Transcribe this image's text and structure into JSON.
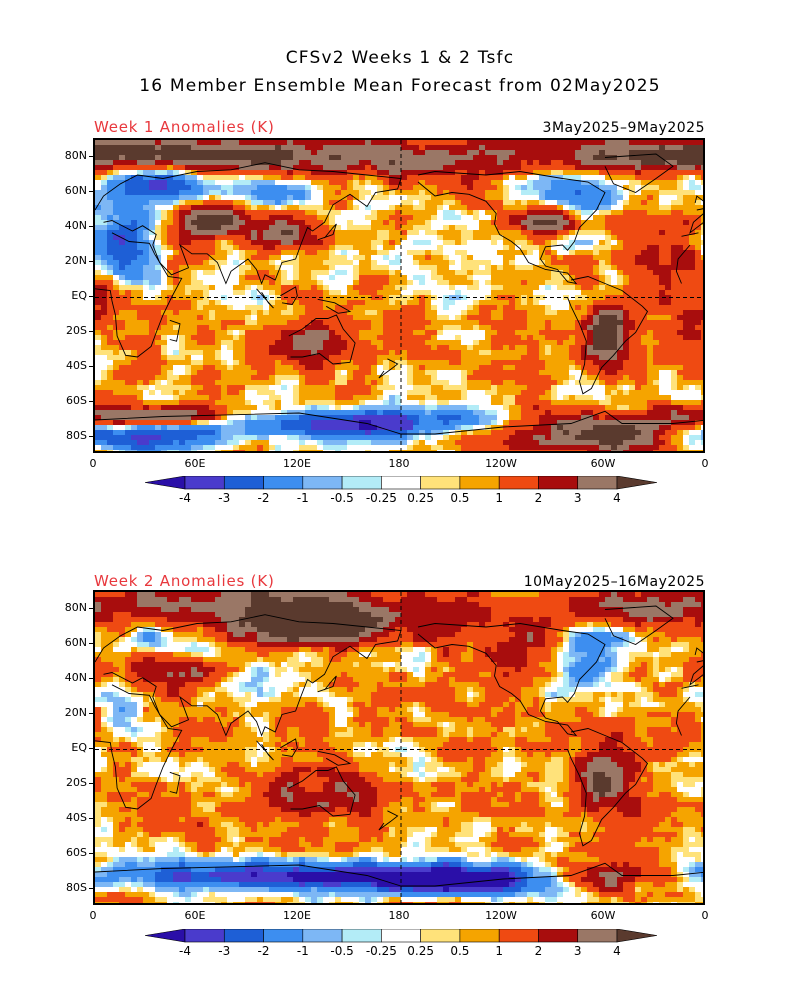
{
  "title": {
    "line1": "CFSv2 Weeks 1 & 2 Tsfc",
    "line2": "16 Member Ensemble Mean Forecast from 02May2025"
  },
  "panels": [
    {
      "label": "Week 1 Anomalies (K)",
      "dates": "3May2025–9May2025"
    },
    {
      "label": "Week 2 Anomalies (K)",
      "dates": "10May2025–16May2025"
    }
  ],
  "lat_labels": [
    "80N",
    "60N",
    "40N",
    "20N",
    "EQ",
    "20S",
    "40S",
    "60S",
    "80S"
  ],
  "lon_labels": [
    "0",
    "60E",
    "120E",
    "180",
    "120W",
    "60W",
    "0"
  ],
  "colorbar": {
    "labels": [
      "-4",
      "-3",
      "-2",
      "-1",
      "-0.5",
      "-0.25",
      "0.25",
      "0.5",
      "1",
      "2",
      "3",
      "4"
    ],
    "colors": [
      "#2a0fa8",
      "#4a3bcc",
      "#1e5fd6",
      "#3d8ef0",
      "#7db7f5",
      "#b3ecf7",
      "#ffffff",
      "#ffe27a",
      "#f5a400",
      "#ef4a12",
      "#a80d0d",
      "#9a7766",
      "#5a3a2e"
    ]
  }
}
